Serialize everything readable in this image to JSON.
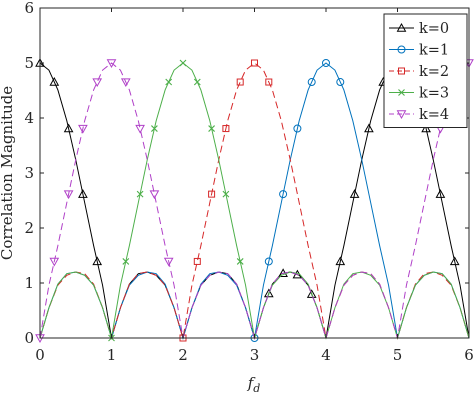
{
  "chart_data": {
    "type": "line",
    "xlabel": "f_d",
    "ylabel": "Correlation Magnitude",
    "xlim": [
      0,
      6
    ],
    "ylim": [
      0,
      6
    ],
    "xticks": [
      "0",
      "1",
      "2",
      "3",
      "4",
      "5",
      "6"
    ],
    "yticks": [
      "0",
      "1",
      "2",
      "3",
      "4",
      "5",
      "6"
    ],
    "grid": false,
    "legend_position": "top-right",
    "series": [
      {
        "name": "k=0",
        "color": "#000000",
        "line_style": "solid",
        "marker": "triangle-up",
        "x": [
          0,
          0.125,
          0.25,
          0.375,
          0.5,
          0.625,
          0.75,
          0.875,
          1,
          1.125,
          1.25,
          1.375,
          1.5,
          1.625,
          1.75,
          1.875,
          2,
          2.125,
          2.25,
          2.375,
          2.5,
          2.625,
          2.75,
          2.875,
          3,
          3.125,
          3.25,
          3.375,
          3.5,
          3.625,
          3.75,
          3.875,
          4,
          4.125,
          4.25,
          4.375,
          4.5,
          4.625,
          4.75,
          4.875,
          5,
          5.125,
          5.25,
          5.375,
          5.5,
          5.625,
          5.75,
          5.875,
          6
        ],
        "y": [
          5.0,
          4.87,
          4.51,
          3.95,
          3.24,
          2.46,
          1.68,
          0.96,
          0.0,
          0.55,
          0.98,
          1.17,
          1.2,
          1.14,
          0.96,
          0.55,
          0.0,
          0.55,
          0.96,
          1.14,
          1.2,
          1.17,
          0.98,
          0.55,
          0.0,
          0.55,
          0.98,
          1.17,
          1.2,
          1.14,
          0.96,
          0.55,
          0.0,
          0.96,
          1.68,
          2.46,
          3.24,
          3.95,
          4.51,
          4.87,
          5.0,
          4.87,
          4.51,
          3.95,
          3.24,
          2.46,
          1.68,
          0.96,
          0.0
        ],
        "marker_x": [
          0,
          0.2,
          0.4,
          0.6,
          0.8,
          3.2,
          3.4,
          3.6,
          3.8,
          4.2,
          4.4,
          4.6,
          4.8,
          5.2,
          5.4,
          5.6,
          5.8
        ]
      },
      {
        "name": "k=1",
        "color": "#0072BD",
        "line_style": "solid",
        "marker": "circle",
        "x": [
          0,
          0.125,
          0.25,
          0.375,
          0.5,
          0.625,
          0.75,
          0.875,
          1,
          1.125,
          1.25,
          1.375,
          1.5,
          1.625,
          1.75,
          1.875,
          2,
          2.125,
          2.25,
          2.375,
          2.5,
          2.625,
          2.75,
          2.875,
          3,
          3.125,
          3.25,
          3.375,
          3.5,
          3.625,
          3.75,
          3.875,
          4,
          4.125,
          4.25,
          4.375,
          4.5,
          4.625,
          4.75,
          4.875,
          5,
          5.125,
          5.25,
          5.375,
          5.5,
          5.625,
          5.75,
          5.875,
          6
        ],
        "y": [
          0.0,
          0.55,
          0.98,
          1.17,
          1.2,
          1.14,
          0.96,
          0.55,
          0.0,
          0.55,
          0.96,
          1.14,
          1.2,
          1.17,
          0.98,
          0.55,
          0.0,
          0.55,
          0.98,
          1.17,
          1.2,
          1.14,
          0.96,
          0.55,
          0.0,
          0.96,
          1.68,
          2.46,
          3.24,
          3.95,
          4.51,
          4.87,
          5.0,
          4.87,
          4.51,
          3.95,
          3.24,
          2.46,
          1.68,
          0.96,
          0.0,
          0.55,
          0.96,
          1.14,
          1.2,
          1.17,
          0.98,
          0.55,
          0.0
        ],
        "marker_x": [
          3.0,
          3.2,
          3.4,
          3.6,
          3.8,
          4.0,
          4.2
        ]
      },
      {
        "name": "k=2",
        "color": "#D62728",
        "line_style": "dashed",
        "marker": "square",
        "x": [
          0,
          0.125,
          0.25,
          0.375,
          0.5,
          0.625,
          0.75,
          0.875,
          1,
          1.125,
          1.25,
          1.375,
          1.5,
          1.625,
          1.75,
          1.875,
          2,
          2.125,
          2.25,
          2.375,
          2.5,
          2.625,
          2.75,
          2.875,
          3,
          3.125,
          3.25,
          3.375,
          3.5,
          3.625,
          3.75,
          3.875,
          4,
          4.125,
          4.25,
          4.375,
          4.5,
          4.625,
          4.75,
          4.875,
          5,
          5.125,
          5.25,
          5.375,
          5.5,
          5.625,
          5.75,
          5.875,
          6
        ],
        "y": [
          0.0,
          0.55,
          0.96,
          1.14,
          1.2,
          1.17,
          0.98,
          0.55,
          0.0,
          0.55,
          0.98,
          1.17,
          1.2,
          1.14,
          0.96,
          0.55,
          0.0,
          0.96,
          1.68,
          2.46,
          3.24,
          3.95,
          4.51,
          4.87,
          5.0,
          4.87,
          4.51,
          3.95,
          3.24,
          2.46,
          1.68,
          0.96,
          0.0,
          0.55,
          0.96,
          1.14,
          1.2,
          1.17,
          0.98,
          0.55,
          0.0,
          0.55,
          0.98,
          1.17,
          1.2,
          1.14,
          0.96,
          0.55,
          0.0
        ],
        "marker_x": [
          2.0,
          2.2,
          2.4,
          2.6,
          2.8,
          3.0,
          3.2
        ]
      },
      {
        "name": "k=3",
        "color": "#4DAF4A",
        "line_style": "solid",
        "marker": "x",
        "x": [
          0,
          0.125,
          0.25,
          0.375,
          0.5,
          0.625,
          0.75,
          0.875,
          1,
          1.125,
          1.25,
          1.375,
          1.5,
          1.625,
          1.75,
          1.875,
          2,
          2.125,
          2.25,
          2.375,
          2.5,
          2.625,
          2.75,
          2.875,
          3,
          3.125,
          3.25,
          3.375,
          3.5,
          3.625,
          3.75,
          3.875,
          4,
          4.125,
          4.25,
          4.375,
          4.5,
          4.625,
          4.75,
          4.875,
          5,
          5.125,
          5.25,
          5.375,
          5.5,
          5.625,
          5.75,
          5.875,
          6
        ],
        "y": [
          0.0,
          0.55,
          0.98,
          1.17,
          1.2,
          1.14,
          0.96,
          0.55,
          0.0,
          0.96,
          1.68,
          2.46,
          3.24,
          3.95,
          4.51,
          4.87,
          5.0,
          4.87,
          4.51,
          3.95,
          3.24,
          2.46,
          1.68,
          0.96,
          0.0,
          0.55,
          0.96,
          1.14,
          1.2,
          1.17,
          0.98,
          0.55,
          0.0,
          0.55,
          0.98,
          1.17,
          1.2,
          1.14,
          0.96,
          0.55,
          0.0,
          0.55,
          0.96,
          1.14,
          1.2,
          1.17,
          0.98,
          0.55,
          0.0
        ],
        "marker_x": [
          1.0,
          1.2,
          1.4,
          1.6,
          1.8,
          2.0,
          2.2,
          2.4,
          2.6,
          2.8
        ]
      },
      {
        "name": "k=4",
        "color": "#B040C8",
        "line_style": "dashed",
        "marker": "triangle-down",
        "x": [
          0,
          0.125,
          0.25,
          0.375,
          0.5,
          0.625,
          0.75,
          0.875,
          1,
          1.125,
          1.25,
          1.375,
          1.5,
          1.625,
          1.75,
          1.875,
          2,
          2.125,
          2.25,
          2.375,
          2.5,
          2.625,
          2.75,
          2.875,
          3,
          3.125,
          3.25,
          3.375,
          3.5,
          3.625,
          3.75,
          3.875,
          4,
          4.125,
          4.25,
          4.375,
          4.5,
          4.625,
          4.75,
          4.875,
          5,
          5.125,
          5.25,
          5.375,
          5.5,
          5.625,
          5.75,
          5.875,
          6
        ],
        "y": [
          0.0,
          0.96,
          1.68,
          2.46,
          3.24,
          3.95,
          4.51,
          4.87,
          5.0,
          4.87,
          4.51,
          3.95,
          3.24,
          2.46,
          1.68,
          0.96,
          0.0,
          0.55,
          0.96,
          1.14,
          1.2,
          1.17,
          0.98,
          0.55,
          0.0,
          0.55,
          0.98,
          1.17,
          1.2,
          1.14,
          0.96,
          0.55,
          0.0,
          0.55,
          0.96,
          1.14,
          1.2,
          1.17,
          0.98,
          0.55,
          0.0,
          0.96,
          1.68,
          2.46,
          3.24,
          3.95,
          4.51,
          4.87,
          5.0
        ],
        "marker_x": [
          0.0,
          0.2,
          0.4,
          0.6,
          0.8,
          1.0,
          1.2,
          1.4,
          1.6,
          1.8,
          5.6,
          5.8,
          6.0
        ]
      }
    ]
  }
}
